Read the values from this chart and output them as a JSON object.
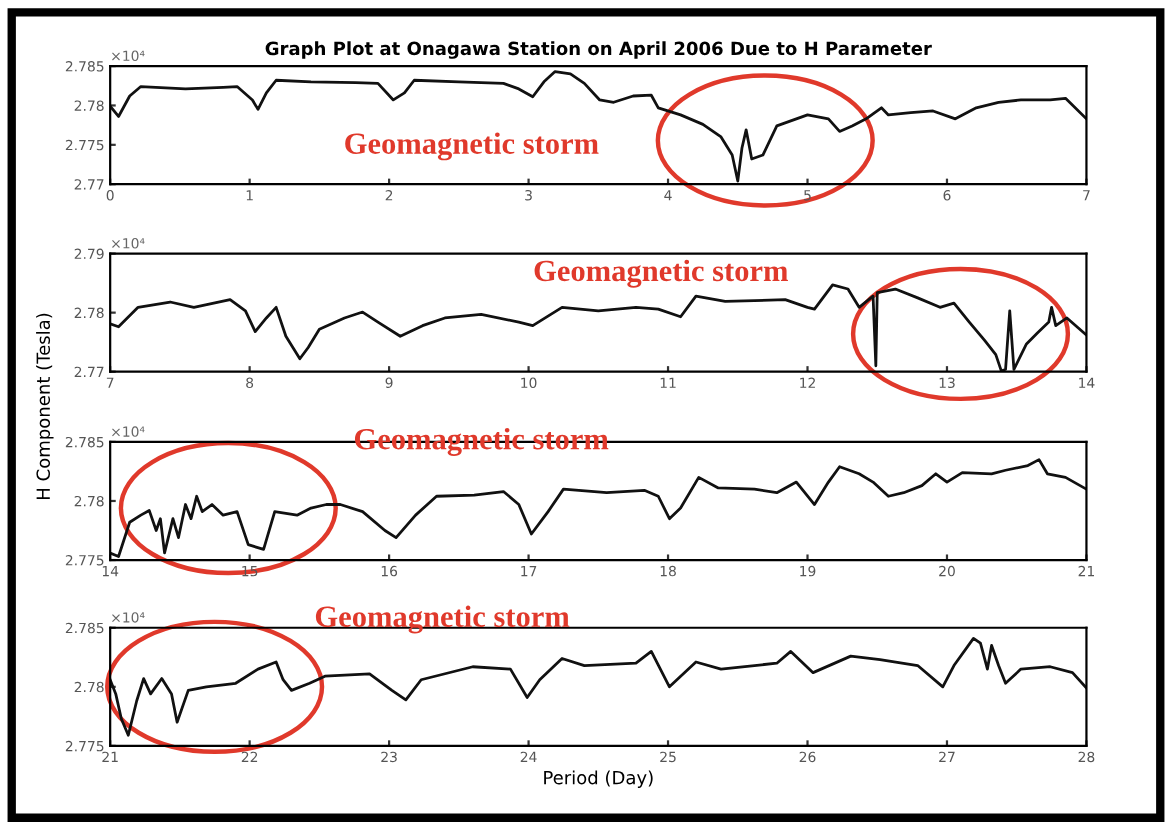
{
  "chart_data": [
    {
      "type": "line",
      "title": "Graph Plot at Onagawa Station on April 2006 Due to H Parameter",
      "x": [
        0,
        0.06,
        0.14,
        0.22,
        0.54,
        0.81,
        0.91,
        1.02,
        1.06,
        1.12,
        1.19,
        1.44,
        1.76,
        1.92,
        2.03,
        2.11,
        2.18,
        2.5,
        2.82,
        2.93,
        3.03,
        3.11,
        3.19,
        3.3,
        3.4,
        3.51,
        3.61,
        3.75,
        3.88,
        3.93,
        4.09,
        4.25,
        4.38,
        4.46,
        4.5,
        4.53,
        4.56,
        4.6,
        4.68,
        4.78,
        5.0,
        5.15,
        5.23,
        5.32,
        5.42,
        5.53,
        5.58,
        5.74,
        5.9,
        6.06,
        6.21,
        6.37,
        6.53,
        6.74,
        6.85,
        7.0
      ],
      "series": [
        {
          "color": "#111111",
          "values": [
            2.7799,
            2.7786,
            2.7812,
            2.7824,
            2.7821,
            2.7823,
            2.7824,
            2.7807,
            2.7795,
            2.7816,
            2.7832,
            2.783,
            2.7829,
            2.7828,
            2.7807,
            2.7816,
            2.7832,
            2.783,
            2.7828,
            2.7821,
            2.7811,
            2.783,
            2.7843,
            2.784,
            2.7828,
            2.7807,
            2.7804,
            2.7812,
            2.7813,
            2.7797,
            2.7788,
            2.7776,
            2.776,
            2.7737,
            2.7704,
            2.7746,
            2.7769,
            2.7732,
            2.7737,
            2.7774,
            2.7788,
            2.7783,
            2.7767,
            2.7774,
            2.7783,
            2.7797,
            2.7788,
            2.7791,
            2.7793,
            2.7783,
            2.7797,
            2.7804,
            2.7807,
            2.7807,
            2.7809,
            2.7783
          ]
        }
      ],
      "xlim": [
        0,
        7
      ],
      "xticks": [
        0,
        1,
        2,
        3,
        4,
        5,
        6,
        7
      ],
      "ylim": [
        2.77,
        2.785
      ],
      "yticks": [
        2.77,
        2.775,
        2.78,
        2.785
      ],
      "annotations": [
        "×10⁴",
        "Geomagnetic storm"
      ]
    },
    {
      "type": "line",
      "x": [
        7,
        7.06,
        7.2,
        7.43,
        7.6,
        7.86,
        7.97,
        8.04,
        8.12,
        8.19,
        8.26,
        8.36,
        8.42,
        8.5,
        8.68,
        8.81,
        8.92,
        9.08,
        9.24,
        9.4,
        9.66,
        9.93,
        10.03,
        10.24,
        10.5,
        10.77,
        10.93,
        11.09,
        11.2,
        11.41,
        11.84,
        12.0,
        12.05,
        12.18,
        12.29,
        12.37,
        12.47,
        12.49,
        12.5,
        12.63,
        12.79,
        12.95,
        13.05,
        13.16,
        13.27,
        13.35,
        13.39,
        13.42,
        13.45,
        13.48,
        13.57,
        13.65,
        13.73,
        13.75,
        13.78,
        13.86,
        14.0
      ],
      "series": [
        {
          "color": "#111111",
          "values": [
            2.7781,
            2.7776,
            2.7809,
            2.7818,
            2.7809,
            2.7822,
            2.7803,
            2.7768,
            2.7791,
            2.7809,
            2.776,
            2.7722,
            2.7741,
            2.7772,
            2.7791,
            2.7801,
            2.7784,
            2.776,
            2.7778,
            2.7791,
            2.7797,
            2.7784,
            2.7778,
            2.7809,
            2.7803,
            2.7809,
            2.7806,
            2.7793,
            2.7828,
            2.7819,
            2.7822,
            2.7809,
            2.7806,
            2.7847,
            2.784,
            2.7809,
            2.7828,
            2.771,
            2.7834,
            2.784,
            2.7825,
            2.7809,
            2.7816,
            2.7784,
            2.7753,
            2.7729,
            2.7701,
            2.7704,
            2.7803,
            2.7704,
            2.7747,
            2.7766,
            2.7784,
            2.7809,
            2.7778,
            2.7791,
            2.7762
          ]
        }
      ],
      "xlim": [
        7,
        14
      ],
      "xticks": [
        7,
        8,
        9,
        10,
        11,
        12,
        13,
        14
      ],
      "ylim": [
        2.77,
        2.79
      ],
      "yticks": [
        2.77,
        2.78,
        2.79
      ],
      "annotations": [
        "×10⁴",
        "Geomagnetic storm"
      ]
    },
    {
      "type": "line",
      "ylabel": "H Component (Tesla)",
      "x": [
        14,
        14.06,
        14.14,
        14.22,
        14.28,
        14.33,
        14.36,
        14.39,
        14.45,
        14.49,
        14.54,
        14.58,
        14.62,
        14.66,
        14.73,
        14.81,
        14.91,
        14.99,
        15.1,
        15.18,
        15.34,
        15.44,
        15.55,
        15.65,
        15.81,
        15.97,
        16.05,
        16.19,
        16.34,
        16.61,
        16.82,
        16.93,
        17.02,
        17.14,
        17.25,
        17.56,
        17.83,
        17.93,
        18.01,
        18.09,
        18.22,
        18.36,
        18.62,
        18.78,
        18.92,
        19.05,
        19.15,
        19.23,
        19.37,
        19.47,
        19.58,
        19.69,
        19.82,
        19.92,
        20.0,
        20.11,
        20.32,
        20.42,
        20.58,
        20.66,
        20.72,
        20.85,
        21.0
      ],
      "series": [
        {
          "color": "#111111",
          "values": [
            2.7756,
            2.7753,
            2.7782,
            2.7788,
            2.7792,
            2.7775,
            2.7785,
            2.7756,
            2.7785,
            2.7769,
            2.7797,
            2.7785,
            2.7804,
            2.7791,
            2.7797,
            2.7788,
            2.7791,
            2.7763,
            2.7759,
            2.7791,
            2.7788,
            2.7794,
            2.7797,
            2.7797,
            2.7791,
            2.7775,
            2.7769,
            2.7788,
            2.7804,
            2.7805,
            2.7808,
            2.7797,
            2.7772,
            2.7791,
            2.781,
            2.7807,
            2.7809,
            2.7804,
            2.7785,
            2.7794,
            2.782,
            2.7811,
            2.781,
            2.7807,
            2.7816,
            2.7797,
            2.7816,
            2.7829,
            2.7823,
            2.7816,
            2.7804,
            2.7807,
            2.7813,
            2.7823,
            2.7816,
            2.7824,
            2.7823,
            2.7826,
            2.783,
            2.7835,
            2.7823,
            2.782,
            2.781
          ]
        }
      ],
      "xlim": [
        14,
        21
      ],
      "xticks": [
        14,
        15,
        16,
        17,
        18,
        19,
        20,
        21
      ],
      "ylim": [
        2.775,
        2.785
      ],
      "yticks": [
        2.775,
        2.78,
        2.785
      ],
      "annotations": [
        "×10⁴",
        "Geomagnetic storm"
      ]
    },
    {
      "type": "line",
      "xlabel": "Period (Day)",
      "x": [
        21,
        21.04,
        21.08,
        21.13,
        21.19,
        21.24,
        21.29,
        21.37,
        21.44,
        21.48,
        21.56,
        21.69,
        21.9,
        22.06,
        22.19,
        22.24,
        22.3,
        22.43,
        22.54,
        22.86,
        23.02,
        23.12,
        23.23,
        23.6,
        23.87,
        23.99,
        24.08,
        24.24,
        24.4,
        24.77,
        24.88,
        25.01,
        25.2,
        25.38,
        25.78,
        25.88,
        26.04,
        26.31,
        26.52,
        26.79,
        26.97,
        27.05,
        27.19,
        27.24,
        27.29,
        27.32,
        27.37,
        27.42,
        27.53,
        27.74,
        27.9,
        28.0
      ],
      "series": [
        {
          "color": "#111111",
          "values": [
            2.7806,
            2.7794,
            2.7773,
            2.7759,
            2.7788,
            2.7807,
            2.7794,
            2.7807,
            2.7794,
            2.777,
            2.7797,
            2.78,
            2.7803,
            2.7815,
            2.7821,
            2.7806,
            2.7797,
            2.7803,
            2.7809,
            2.7811,
            2.7797,
            2.7789,
            2.7806,
            2.7817,
            2.7815,
            2.7791,
            2.7806,
            2.7824,
            2.7818,
            2.782,
            2.783,
            2.78,
            2.7821,
            2.7815,
            2.782,
            2.783,
            2.7812,
            2.7826,
            2.7823,
            2.7818,
            2.78,
            2.7818,
            2.7841,
            2.7837,
            2.7815,
            2.7835,
            2.7818,
            2.7803,
            2.7815,
            2.7817,
            2.7812,
            2.7799
          ]
        }
      ],
      "xlim": [
        21,
        28
      ],
      "xticks": [
        21,
        22,
        23,
        24,
        25,
        26,
        27,
        28
      ],
      "ylim": [
        2.775,
        2.785
      ],
      "yticks": [
        2.775,
        2.78,
        2.785
      ],
      "annotations": [
        "×10⁴",
        "Geomagnetic storm"
      ]
    }
  ]
}
